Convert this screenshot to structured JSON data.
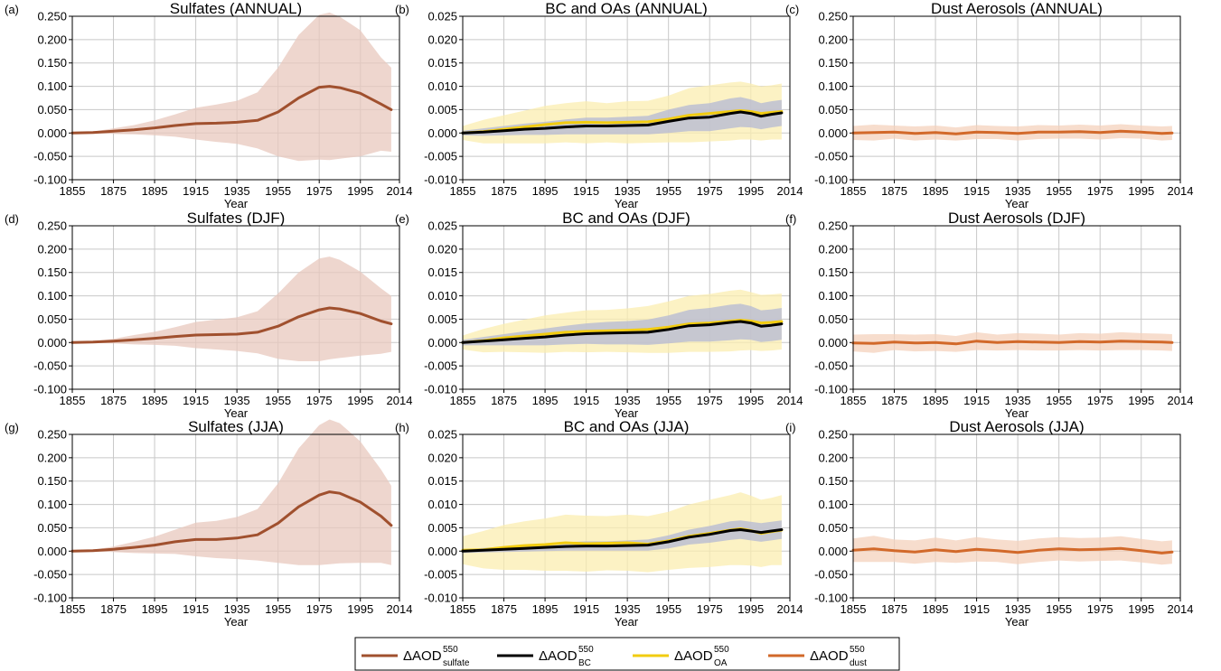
{
  "x_ticks": [
    "1855",
    "1875",
    "1895",
    "1915",
    "1935",
    "1955",
    "1975",
    "1995",
    "2014"
  ],
  "xlabel": "Year",
  "colors": {
    "sulfate": "#a0502e",
    "sulfate_band": "#e8c8bd",
    "bc": "#000000",
    "bc_band": "#b4b8d4",
    "oa": "#f2cc10",
    "oa_band": "#fbeeb0",
    "dust": "#d2692a",
    "dust_band": "#f4d2bc",
    "grid": "#c8c8c8"
  },
  "legend": [
    {
      "base": "ΔAOD",
      "sup": "550",
      "sub": "sulfate",
      "color": "#a0502e"
    },
    {
      "base": "ΔAOD",
      "sup": "550",
      "sub": "BC",
      "color": "#000000"
    },
    {
      "base": "ΔAOD",
      "sup": "550",
      "sub": "OA",
      "color": "#f2cc10"
    },
    {
      "base": "ΔAOD",
      "sup": "550",
      "sub": "dust",
      "color": "#d2692a"
    }
  ],
  "chart_data": [
    {
      "id": "a",
      "panel_label": "(a)",
      "type": "line",
      "title": "Sulfates (ANNUAL)",
      "xlabel": "Year",
      "xlim": [
        1855,
        2014
      ],
      "ylim": [
        -0.1,
        0.25
      ],
      "y_ticks": [
        "0.250",
        "0.200",
        "0.150",
        "0.100",
        "0.050",
        "0.000",
        "-0.050",
        "-0.100"
      ],
      "series": [
        {
          "key": "sulfate",
          "x": [
            1855,
            1865,
            1875,
            1885,
            1895,
            1905,
            1915,
            1925,
            1935,
            1945,
            1955,
            1965,
            1975,
            1980,
            1985,
            1995,
            2005,
            2010
          ],
          "y": [
            0.0,
            0.001,
            0.004,
            0.007,
            0.011,
            0.016,
            0.02,
            0.021,
            0.023,
            0.027,
            0.045,
            0.075,
            0.098,
            0.1,
            0.097,
            0.085,
            0.062,
            0.05
          ],
          "band": [
            0.0,
            0.002,
            0.006,
            0.01,
            0.016,
            0.024,
            0.034,
            0.04,
            0.046,
            0.06,
            0.095,
            0.135,
            0.155,
            0.158,
            0.152,
            0.135,
            0.1,
            0.09
          ]
        }
      ]
    },
    {
      "id": "b",
      "panel_label": "(b)",
      "type": "line",
      "title": "BC and OAs (ANNUAL)",
      "xlabel": "Year",
      "xlim": [
        1855,
        2014
      ],
      "ylim": [
        -0.01,
        0.025
      ],
      "y_ticks": [
        "0.025",
        "0.020",
        "0.015",
        "0.010",
        "0.005",
        "0.000",
        "-0.005",
        "-0.010"
      ],
      "series": [
        {
          "key": "oa",
          "x": [
            1855,
            1865,
            1875,
            1885,
            1895,
            1905,
            1915,
            1925,
            1935,
            1945,
            1955,
            1965,
            1975,
            1985,
            1990,
            1995,
            2000,
            2005,
            2010
          ],
          "y": [
            0.0,
            0.0003,
            0.0008,
            0.0013,
            0.0018,
            0.0022,
            0.0023,
            0.0022,
            0.0023,
            0.0024,
            0.003,
            0.0038,
            0.0042,
            0.0046,
            0.0048,
            0.0046,
            0.0042,
            0.0044,
            0.0046
          ],
          "band": [
            0.0015,
            0.0025,
            0.003,
            0.0035,
            0.004,
            0.0042,
            0.0045,
            0.0042,
            0.0045,
            0.0045,
            0.005,
            0.0058,
            0.006,
            0.0062,
            0.0062,
            0.006,
            0.0058,
            0.0058,
            0.006
          ]
        },
        {
          "key": "bc",
          "x": [
            1855,
            1865,
            1875,
            1885,
            1895,
            1905,
            1915,
            1925,
            1935,
            1945,
            1955,
            1965,
            1975,
            1985,
            1990,
            1995,
            2000,
            2005,
            2010
          ],
          "y": [
            0.0,
            0.0002,
            0.0005,
            0.0008,
            0.001,
            0.0013,
            0.0015,
            0.0015,
            0.0016,
            0.0017,
            0.0025,
            0.0032,
            0.0034,
            0.0042,
            0.0045,
            0.0042,
            0.0036,
            0.004,
            0.0043
          ],
          "band": [
            0.0005,
            0.0008,
            0.001,
            0.0012,
            0.0014,
            0.0016,
            0.0018,
            0.0018,
            0.0019,
            0.002,
            0.0025,
            0.0028,
            0.003,
            0.0032,
            0.0032,
            0.003,
            0.0028,
            0.0028,
            0.0028
          ]
        }
      ]
    },
    {
      "id": "c",
      "panel_label": "(c)",
      "type": "line",
      "title": "Dust Aerosols (ANNUAL)",
      "xlabel": "Year",
      "xlim": [
        1855,
        2014
      ],
      "ylim": [
        -0.1,
        0.25
      ],
      "y_ticks": [
        "0.250",
        "0.200",
        "0.150",
        "0.100",
        "0.050",
        "0.000",
        "-0.050",
        "-0.100"
      ],
      "series": [
        {
          "key": "dust",
          "x": [
            1855,
            1865,
            1875,
            1885,
            1895,
            1905,
            1915,
            1925,
            1935,
            1945,
            1955,
            1965,
            1975,
            1985,
            1995,
            2005,
            2010
          ],
          "y": [
            0.0,
            0.001,
            0.002,
            -0.001,
            0.001,
            -0.002,
            0.002,
            0.001,
            -0.001,
            0.002,
            0.002,
            0.003,
            0.001,
            0.004,
            0.002,
            -0.001,
            0.0
          ],
          "band": [
            0.015,
            0.017,
            0.014,
            0.015,
            0.015,
            0.014,
            0.015,
            0.014,
            0.015,
            0.015,
            0.014,
            0.015,
            0.015,
            0.015,
            0.014,
            0.015,
            0.015
          ]
        }
      ]
    },
    {
      "id": "d",
      "panel_label": "(d)",
      "type": "line",
      "title": "Sulfates (DJF)",
      "xlabel": "Year",
      "xlim": [
        1855,
        2014
      ],
      "ylim": [
        -0.1,
        0.25
      ],
      "y_ticks": [
        "0.250",
        "0.200",
        "0.150",
        "0.100",
        "0.050",
        "0.000",
        "-0.050",
        "-0.100"
      ],
      "series": [
        {
          "key": "sulfate",
          "x": [
            1855,
            1865,
            1875,
            1885,
            1895,
            1905,
            1915,
            1925,
            1935,
            1945,
            1955,
            1965,
            1975,
            1980,
            1985,
            1995,
            2005,
            2010
          ],
          "y": [
            0.0,
            0.001,
            0.003,
            0.006,
            0.009,
            0.013,
            0.016,
            0.017,
            0.018,
            0.022,
            0.035,
            0.055,
            0.07,
            0.074,
            0.072,
            0.062,
            0.046,
            0.04
          ],
          "band": [
            0.0,
            0.002,
            0.005,
            0.01,
            0.014,
            0.02,
            0.028,
            0.032,
            0.036,
            0.045,
            0.07,
            0.095,
            0.11,
            0.11,
            0.105,
            0.09,
            0.07,
            0.06
          ]
        }
      ]
    },
    {
      "id": "e",
      "panel_label": "(e)",
      "type": "line",
      "title": "BC and OAs (DJF)",
      "xlabel": "Year",
      "xlim": [
        1855,
        2014
      ],
      "ylim": [
        -0.01,
        0.025
      ],
      "y_ticks": [
        "0.025",
        "0.020",
        "0.015",
        "0.010",
        "0.005",
        "0.000",
        "-0.005",
        "-0.010"
      ],
      "series": [
        {
          "key": "oa",
          "x": [
            1855,
            1865,
            1875,
            1885,
            1895,
            1905,
            1915,
            1925,
            1935,
            1945,
            1955,
            1965,
            1975,
            1985,
            1990,
            1995,
            2000,
            2005,
            2010
          ],
          "y": [
            0.0,
            0.0004,
            0.001,
            0.0014,
            0.0018,
            0.0022,
            0.0024,
            0.0025,
            0.0026,
            0.0028,
            0.0033,
            0.004,
            0.0042,
            0.0046,
            0.0048,
            0.0046,
            0.0042,
            0.0043,
            0.0045
          ],
          "band": [
            0.0015,
            0.0025,
            0.003,
            0.0035,
            0.004,
            0.0042,
            0.0045,
            0.0045,
            0.0047,
            0.005,
            0.0055,
            0.006,
            0.0062,
            0.0065,
            0.0065,
            0.0062,
            0.006,
            0.006,
            0.006
          ]
        },
        {
          "key": "bc",
          "x": [
            1855,
            1865,
            1875,
            1885,
            1895,
            1905,
            1915,
            1925,
            1935,
            1945,
            1955,
            1965,
            1975,
            1985,
            1990,
            1995,
            2000,
            2005,
            2010
          ],
          "y": [
            0.0,
            0.0003,
            0.0006,
            0.0009,
            0.0012,
            0.0016,
            0.0019,
            0.002,
            0.0021,
            0.0022,
            0.0028,
            0.0036,
            0.0038,
            0.0043,
            0.0045,
            0.0042,
            0.0035,
            0.0037,
            0.004
          ],
          "band": [
            0.0006,
            0.0009,
            0.0012,
            0.0015,
            0.0018,
            0.002,
            0.0022,
            0.0024,
            0.0025,
            0.0027,
            0.003,
            0.0034,
            0.0036,
            0.0038,
            0.0038,
            0.0036,
            0.0034,
            0.0034,
            0.0034
          ]
        }
      ]
    },
    {
      "id": "f",
      "panel_label": "(f)",
      "type": "line",
      "title": "Dust Aerosols (DJF)",
      "xlabel": "Year",
      "xlim": [
        1855,
        2014
      ],
      "ylim": [
        -0.1,
        0.25
      ],
      "y_ticks": [
        "0.250",
        "0.200",
        "0.150",
        "0.100",
        "0.050",
        "0.000",
        "-0.050",
        "-0.100"
      ],
      "series": [
        {
          "key": "dust",
          "x": [
            1855,
            1865,
            1875,
            1885,
            1895,
            1905,
            1915,
            1925,
            1935,
            1945,
            1955,
            1965,
            1975,
            1985,
            1995,
            2005,
            2010
          ],
          "y": [
            -0.001,
            -0.002,
            0.001,
            -0.001,
            0.0,
            -0.003,
            0.003,
            0.0,
            0.002,
            0.001,
            0.0,
            0.002,
            0.001,
            0.003,
            0.002,
            0.001,
            0.0
          ],
          "band": [
            0.018,
            0.02,
            0.017,
            0.018,
            0.018,
            0.017,
            0.019,
            0.017,
            0.018,
            0.018,
            0.017,
            0.018,
            0.018,
            0.019,
            0.018,
            0.018,
            0.018
          ]
        }
      ]
    },
    {
      "id": "g",
      "panel_label": "(g)",
      "type": "line",
      "title": "Sulfates (JJA)",
      "xlabel": "Year",
      "xlim": [
        1855,
        2014
      ],
      "ylim": [
        -0.1,
        0.25
      ],
      "y_ticks": [
        "0.250",
        "0.200",
        "0.150",
        "0.100",
        "0.050",
        "0.000",
        "-0.050",
        "-0.100"
      ],
      "series": [
        {
          "key": "sulfate",
          "x": [
            1855,
            1865,
            1875,
            1885,
            1895,
            1905,
            1915,
            1925,
            1935,
            1945,
            1955,
            1965,
            1975,
            1980,
            1985,
            1995,
            2005,
            2010
          ],
          "y": [
            0.0,
            0.001,
            0.004,
            0.008,
            0.013,
            0.02,
            0.025,
            0.025,
            0.028,
            0.035,
            0.06,
            0.095,
            0.12,
            0.127,
            0.124,
            0.105,
            0.075,
            0.055
          ],
          "band": [
            0.0,
            0.002,
            0.006,
            0.012,
            0.018,
            0.026,
            0.036,
            0.04,
            0.045,
            0.055,
            0.085,
            0.125,
            0.15,
            0.155,
            0.15,
            0.13,
            0.1,
            0.085
          ]
        }
      ]
    },
    {
      "id": "h",
      "panel_label": "(h)",
      "type": "line",
      "title": "BC and OAs (JJA)",
      "xlabel": "Year",
      "xlim": [
        1855,
        2014
      ],
      "ylim": [
        -0.01,
        0.025
      ],
      "y_ticks": [
        "0.025",
        "0.020",
        "0.015",
        "0.010",
        "0.005",
        "0.000",
        "-0.005",
        "-0.010"
      ],
      "series": [
        {
          "key": "oa",
          "x": [
            1855,
            1865,
            1875,
            1885,
            1895,
            1905,
            1915,
            1925,
            1935,
            1945,
            1955,
            1965,
            1975,
            1985,
            1990,
            1995,
            2000,
            2005,
            2010
          ],
          "y": [
            0.0002,
            0.0003,
            0.0008,
            0.0012,
            0.0014,
            0.0018,
            0.0016,
            0.0017,
            0.0018,
            0.0015,
            0.0022,
            0.0032,
            0.0038,
            0.0045,
            0.0048,
            0.0044,
            0.0038,
            0.0042,
            0.0045
          ],
          "band": [
            0.003,
            0.004,
            0.0048,
            0.0052,
            0.0056,
            0.006,
            0.006,
            0.0058,
            0.006,
            0.006,
            0.0062,
            0.0068,
            0.0072,
            0.0075,
            0.0078,
            0.0075,
            0.0072,
            0.0072,
            0.0075
          ]
        },
        {
          "key": "bc",
          "x": [
            1855,
            1865,
            1875,
            1885,
            1895,
            1905,
            1915,
            1925,
            1935,
            1945,
            1955,
            1965,
            1975,
            1985,
            1990,
            1995,
            2000,
            2005,
            2010
          ],
          "y": [
            0.0,
            0.0002,
            0.0004,
            0.0006,
            0.0008,
            0.001,
            0.0011,
            0.0011,
            0.0012,
            0.0013,
            0.002,
            0.003,
            0.0036,
            0.0044,
            0.0046,
            0.0043,
            0.004,
            0.0043,
            0.0046
          ],
          "band": [
            0.0004,
            0.0005,
            0.0006,
            0.0007,
            0.0008,
            0.0009,
            0.001,
            0.001,
            0.0011,
            0.0012,
            0.0014,
            0.0016,
            0.0018,
            0.002,
            0.002,
            0.002,
            0.002,
            0.002,
            0.002
          ]
        }
      ]
    },
    {
      "id": "i",
      "panel_label": "(i)",
      "type": "line",
      "title": "Dust Aerosols (JJA)",
      "xlabel": "Year",
      "xlim": [
        1855,
        2014
      ],
      "ylim": [
        -0.1,
        0.25
      ],
      "y_ticks": [
        "0.250",
        "0.200",
        "0.150",
        "0.100",
        "0.050",
        "0.000",
        "-0.050",
        "-0.100"
      ],
      "series": [
        {
          "key": "dust",
          "x": [
            1855,
            1865,
            1875,
            1885,
            1895,
            1905,
            1915,
            1925,
            1935,
            1945,
            1955,
            1965,
            1975,
            1985,
            1995,
            2005,
            2010
          ],
          "y": [
            0.002,
            0.005,
            0.001,
            -0.002,
            0.003,
            -0.001,
            0.004,
            0.001,
            -0.003,
            0.002,
            0.005,
            0.003,
            0.004,
            0.006,
            0.001,
            -0.004,
            -0.002
          ],
          "band": [
            0.025,
            0.028,
            0.024,
            0.025,
            0.026,
            0.024,
            0.026,
            0.024,
            0.025,
            0.025,
            0.025,
            0.025,
            0.025,
            0.026,
            0.025,
            0.025,
            0.025
          ]
        }
      ]
    }
  ]
}
